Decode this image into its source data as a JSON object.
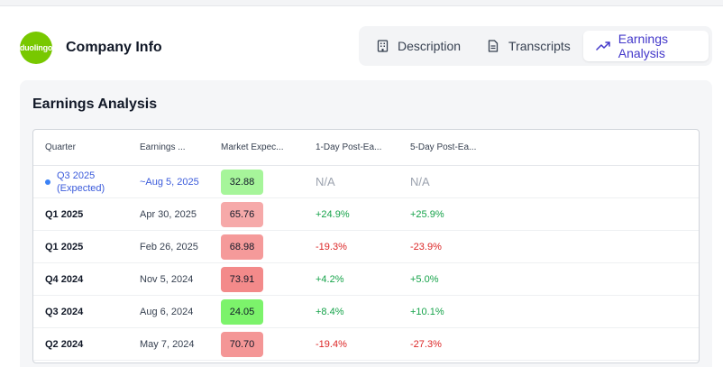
{
  "company": {
    "logo_text": "duolingo",
    "title": "Company Info"
  },
  "tabs": [
    {
      "label": "Description",
      "icon": "building-icon"
    },
    {
      "label": "Transcripts",
      "icon": "document-icon"
    },
    {
      "label": "Earnings Analysis",
      "icon": "trending-up-icon",
      "active": true
    }
  ],
  "panel": {
    "title": "Earnings Analysis"
  },
  "table": {
    "headers": [
      "Quarter",
      "Earnings ...",
      "Market Expec...",
      "1-Day Post-Ea...",
      "5-Day Post-Ea..."
    ],
    "expected_row": {
      "quarter_line1": "Q3 2025",
      "quarter_line2": "(Expected)",
      "date": "~Aug 5, 2025",
      "market": "32.88",
      "market_color": "#a6f59a",
      "one_day": "N/A",
      "five_day": "N/A"
    },
    "rows": [
      {
        "quarter": "Q1 2025",
        "date": "Apr 30, 2025",
        "market": "65.76",
        "market_color": "#f6a9a9",
        "one_day": "+24.9%",
        "five_day": "+25.9%"
      },
      {
        "quarter": "Q1 2025",
        "date": "Feb 26, 2025",
        "market": "68.98",
        "market_color": "#f59a9a",
        "one_day": "-19.3%",
        "five_day": "-23.9%"
      },
      {
        "quarter": "Q4 2024",
        "date": "Nov 5, 2024",
        "market": "73.91",
        "market_color": "#f38a8a",
        "one_day": "+4.2%",
        "five_day": "+5.0%"
      },
      {
        "quarter": "Q3 2024",
        "date": "Aug 6, 2024",
        "market": "24.05",
        "market_color": "#7cf36b",
        "one_day": "+8.4%",
        "five_day": "+10.1%"
      },
      {
        "quarter": "Q2 2024",
        "date": "May 7, 2024",
        "market": "70.70",
        "market_color": "#f49696",
        "one_day": "-19.4%",
        "five_day": "-27.3%"
      }
    ]
  },
  "colors": {
    "accent": "#4338ca",
    "positive": "#16a34a",
    "negative": "#dc2626"
  }
}
